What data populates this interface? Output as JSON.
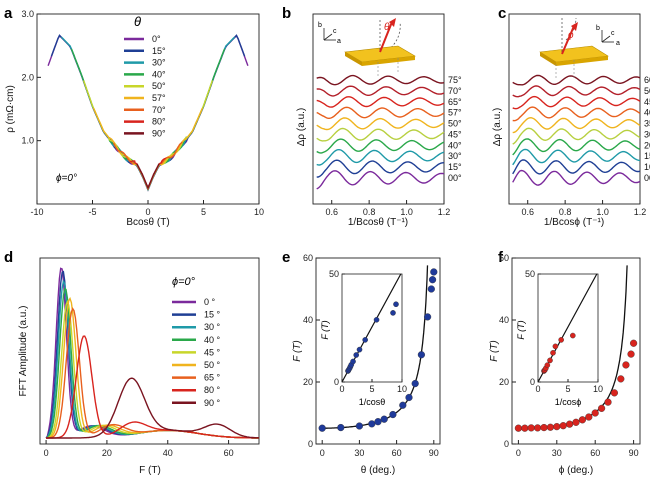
{
  "panels": {
    "a": {
      "label": "a",
      "ylabel": "ρ (mΩ·cm)",
      "xlabel": "Bcosθ (T)",
      "xticks": [
        "-10",
        "-5",
        "0",
        "5",
        "10"
      ],
      "yticks": [
        "1.0",
        "2.0",
        "3.0"
      ],
      "legend_title": "θ",
      "note": "ϕ=0°"
    },
    "b": {
      "label": "b",
      "ylabel": "Δρ (a.u.)",
      "xlabel": "1/Bcosθ (T⁻¹)",
      "xticks": [
        "0.6",
        "0.8",
        "1.0",
        "1.2"
      ],
      "inset": {
        "b": "b",
        "c": "c",
        "a": "a",
        "angle": "θ"
      }
    },
    "c": {
      "label": "c",
      "ylabel": "Δρ (a.u.)",
      "xlabel": "1/Bcosϕ (T⁻¹)",
      "xticks": [
        "0.6",
        "0.8",
        "1.0",
        "1.2"
      ],
      "inset": {
        "b": "b",
        "c": "c",
        "a": "a",
        "angle": "ϕ"
      }
    },
    "d": {
      "label": "d",
      "ylabel": "FFT Amplitude (a.u.)",
      "xlabel": "F (T)",
      "xticks": [
        "0",
        "20",
        "40",
        "60"
      ],
      "legend_title": "ϕ=0°"
    },
    "e": {
      "label": "e",
      "ylabel": "F (T)",
      "xlabel": "θ (deg.)",
      "xticks": [
        "0",
        "30",
        "60",
        "90"
      ],
      "yticks": [
        "0",
        "20",
        "40",
        "60"
      ],
      "inset_xlabel": "1/cosθ",
      "inset_ylabel": "F (T)",
      "inset_xticks": [
        "0",
        "5",
        "10"
      ],
      "inset_yticks": [
        "0",
        "50"
      ]
    },
    "f": {
      "label": "f",
      "ylabel": "F (T)",
      "xlabel": "ϕ (deg.)",
      "xticks": [
        "0",
        "30",
        "60",
        "90"
      ],
      "yticks": [
        "0",
        "20",
        "40",
        "60"
      ],
      "inset_xlabel": "1/cosϕ",
      "inset_ylabel": "F (T)",
      "inset_xticks": [
        "0",
        "5",
        "10"
      ],
      "inset_yticks": [
        "0",
        "50"
      ]
    }
  },
  "chart_data": [
    {
      "panel": "a",
      "type": "line",
      "xlabel": "Bcosθ (T)",
      "ylabel": "ρ (mΩ·cm)",
      "xlim": [
        -10,
        10
      ],
      "ylim": [
        0,
        3
      ],
      "x": [
        -9,
        -8,
        -7,
        -6,
        -5,
        -4,
        -3,
        -2,
        -1,
        -0.5,
        0,
        0.5,
        1,
        2,
        3,
        4,
        5,
        6,
        7,
        8,
        9
      ],
      "profile": [
        2.2,
        2.68,
        2.5,
        2.05,
        1.55,
        1.15,
        0.93,
        0.73,
        0.62,
        0.45,
        0.24,
        0.45,
        0.62,
        0.73,
        0.93,
        1.15,
        1.55,
        2.05,
        2.5,
        2.68,
        2.2
      ],
      "series": [
        {
          "name": "0°",
          "color": "#7b2a9c",
          "xrange": [
            -9,
            9
          ]
        },
        {
          "name": "15°",
          "color": "#1f3f95",
          "xrange": [
            -8.7,
            8.7
          ]
        },
        {
          "name": "30°",
          "color": "#1f9aa8",
          "xrange": [
            -7.8,
            7.8
          ]
        },
        {
          "name": "40°",
          "color": "#2aa84a",
          "xrange": [
            -6.9,
            6.9
          ]
        },
        {
          "name": "50°",
          "color": "#c8d62a",
          "xrange": [
            -5.8,
            5.8
          ]
        },
        {
          "name": "57°",
          "color": "#f0b41e",
          "xrange": [
            -4.9,
            4.9
          ]
        },
        {
          "name": "70°",
          "color": "#e8601e",
          "xrange": [
            -3.1,
            3.1
          ]
        },
        {
          "name": "80°",
          "color": "#d8241e",
          "xrange": [
            -1.6,
            1.6
          ]
        },
        {
          "name": "90°",
          "color": "#7a1420",
          "xrange": [
            -1.0,
            1.0
          ]
        }
      ]
    },
    {
      "panel": "b",
      "type": "line",
      "xlabel": "1/Bcosθ (T⁻¹)",
      "ylabel": "Δρ (a.u.)",
      "xlim": [
        0.5,
        1.2
      ],
      "series": [
        {
          "name": "75°",
          "color": "#7a1420"
        },
        {
          "name": "70°",
          "color": "#b3202a"
        },
        {
          "name": "65°",
          "color": "#d8241e"
        },
        {
          "name": "57°",
          "color": "#e8601e"
        },
        {
          "name": "50°",
          "color": "#f0b41e"
        },
        {
          "name": "45°",
          "color": "#b8d040"
        },
        {
          "name": "40°",
          "color": "#2aa84a"
        },
        {
          "name": "30°",
          "color": "#1f9aa8"
        },
        {
          "name": "15°",
          "color": "#1f3f95"
        },
        {
          "name": "00°",
          "color": "#7b2a9c"
        }
      ]
    },
    {
      "panel": "c",
      "type": "line",
      "xlabel": "1/Bcosϕ (T⁻¹)",
      "ylabel": "Δρ (a.u.)",
      "xlim": [
        0.5,
        1.2
      ],
      "series": [
        {
          "name": "60°",
          "color": "#7a1420"
        },
        {
          "name": "50°",
          "color": "#b3202a"
        },
        {
          "name": "45°",
          "color": "#d8241e"
        },
        {
          "name": "40°",
          "color": "#e8601e"
        },
        {
          "name": "35°",
          "color": "#f0b41e"
        },
        {
          "name": "30°",
          "color": "#b8d040"
        },
        {
          "name": "20°",
          "color": "#2aa84a"
        },
        {
          "name": "15°",
          "color": "#1f9aa8"
        },
        {
          "name": "10°",
          "color": "#1f3f95"
        },
        {
          "name": "00°",
          "color": "#7b2a9c"
        }
      ]
    },
    {
      "panel": "d",
      "type": "line",
      "xlabel": "F (T)",
      "ylabel": "FFT Amplitude (a.u.)",
      "xlim": [
        -2,
        70
      ],
      "series": [
        {
          "name": "0 °",
          "color": "#7b2a9c",
          "peak_F": 5.0,
          "peak_amp": 1.0
        },
        {
          "name": "15 °",
          "color": "#1f3f95",
          "peak_F": 5.5,
          "peak_amp": 0.98
        },
        {
          "name": "30 °",
          "color": "#1f9aa8",
          "peak_F": 5.8,
          "peak_amp": 0.92
        },
        {
          "name": "40 °",
          "color": "#2aa84a",
          "peak_F": 6.3,
          "peak_amp": 0.88
        },
        {
          "name": "45 °",
          "color": "#c8d62a",
          "peak_F": 7.0,
          "peak_amp": 0.8
        },
        {
          "name": "50 °",
          "color": "#f0b41e",
          "peak_F": 7.8,
          "peak_amp": 0.82
        },
        {
          "name": "65 °",
          "color": "#e8601e",
          "peak_F": 8.8,
          "peak_amp": 0.76
        },
        {
          "name": "80 °",
          "color": "#d8241e",
          "peak_F": 12.5,
          "peak_amp": 0.6
        },
        {
          "name": "90 °",
          "color": "#7a1420",
          "peak_F": 28.0,
          "peak_amp": 0.33
        }
      ]
    },
    {
      "panel": "e",
      "type": "scatter",
      "xlabel": "θ (deg.)",
      "ylabel": "F (T)",
      "xlim": [
        -5,
        95
      ],
      "ylim": [
        0,
        60
      ],
      "x": [
        0,
        15,
        30,
        40,
        45,
        50,
        57,
        65,
        70,
        75,
        80,
        85,
        88,
        89,
        90
      ],
      "y": [
        5.1,
        5.3,
        5.8,
        6.5,
        7.2,
        8.0,
        9.5,
        12.5,
        15,
        19.5,
        28.8,
        41,
        50,
        53,
        55.5
      ],
      "fit": "F0/cosθ",
      "inset": {
        "xlabel": "1/cosθ",
        "ylabel": "F (T)",
        "xlim": [
          0,
          10
        ],
        "ylim": [
          0,
          50
        ],
        "x": [
          1.0,
          1.04,
          1.15,
          1.3,
          1.41,
          1.55,
          1.84,
          2.37,
          2.92,
          3.86,
          5.76,
          8.5,
          9.0
        ],
        "y": [
          5.1,
          5.3,
          5.8,
          6.5,
          7.2,
          8.0,
          9.5,
          12.5,
          15,
          19.5,
          28.8,
          32,
          36
        ]
      }
    },
    {
      "panel": "f",
      "type": "scatter",
      "xlabel": "ϕ (deg.)",
      "ylabel": "F (T)",
      "xlim": [
        -5,
        95
      ],
      "ylim": [
        0,
        60
      ],
      "x": [
        0,
        5,
        10,
        15,
        20,
        25,
        30,
        35,
        40,
        45,
        50,
        55,
        60,
        65,
        70,
        75,
        80,
        84,
        88,
        90
      ],
      "y": [
        5.1,
        5.1,
        5.2,
        5.2,
        5.3,
        5.4,
        5.6,
        5.9,
        6.4,
        7.0,
        7.8,
        8.7,
        10.0,
        11.5,
        13.5,
        16.5,
        21.0,
        25.5,
        29.0,
        32.5
      ],
      "fit": "F0/cosϕ",
      "inset": {
        "xlabel": "1/cosϕ",
        "ylabel": "F (T)",
        "xlim": [
          0,
          10
        ],
        "ylim": [
          0,
          50
        ],
        "x": [
          1.0,
          1.06,
          1.15,
          1.31,
          1.56,
          2.0,
          2.5,
          2.9,
          3.86,
          5.8
        ],
        "y": [
          5.1,
          5.3,
          5.6,
          6.4,
          7.8,
          10.0,
          13.5,
          16.5,
          19.5,
          21.5
        ]
      }
    }
  ]
}
